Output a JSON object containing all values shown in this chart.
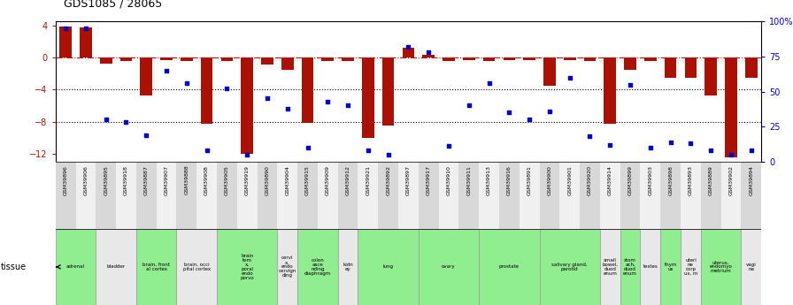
{
  "title": "GDS1085 / 28065",
  "gsm_ids": [
    "GSM39896",
    "GSM39906",
    "GSM39895",
    "GSM39918",
    "GSM39887",
    "GSM39907",
    "GSM39888",
    "GSM39908",
    "GSM39905",
    "GSM39919",
    "GSM39890",
    "GSM39904",
    "GSM39915",
    "GSM39909",
    "GSM39912",
    "GSM39921",
    "GSM39892",
    "GSM39897",
    "GSM39917",
    "GSM39910",
    "GSM39911",
    "GSM39913",
    "GSM39916",
    "GSM39891",
    "GSM39900",
    "GSM39901",
    "GSM39920",
    "GSM39914",
    "GSM39899",
    "GSM39903",
    "GSM39898",
    "GSM39893",
    "GSM39889",
    "GSM39902",
    "GSM39894"
  ],
  "log_ratio": [
    3.8,
    3.7,
    -0.8,
    -0.5,
    -4.8,
    -0.3,
    -0.5,
    -8.3,
    -0.4,
    -12.0,
    -0.9,
    -1.5,
    -8.2,
    -0.5,
    -0.4,
    -10.0,
    -8.5,
    1.2,
    0.3,
    -0.5,
    -0.3,
    -0.4,
    -0.3,
    -0.3,
    -3.5,
    -0.3,
    -0.5,
    -8.3,
    -1.5,
    -0.5,
    -2.5,
    -2.5,
    -4.8,
    -12.5,
    -2.5
  ],
  "percentile_rank": [
    95,
    95,
    30,
    28,
    19,
    65,
    56,
    8,
    52,
    5,
    45,
    38,
    10,
    43,
    40,
    8,
    5,
    82,
    78,
    11,
    40,
    56,
    35,
    30,
    36,
    60,
    18,
    12,
    55,
    10,
    14,
    13,
    8,
    5,
    8
  ],
  "ylim": [
    -13.0,
    4.5
  ],
  "yticks_left": [
    4,
    0,
    -4,
    -8,
    -12
  ],
  "yticks_right_pct": [
    100,
    75,
    50,
    25,
    0
  ],
  "yticks_right_labels": [
    "100%",
    "75",
    "50",
    "25",
    "0"
  ],
  "bar_color": "#aa1100",
  "dot_color": "#0000cc",
  "zero_line_color": "#cc0000",
  "grid_line_color": "#000000",
  "tissue_groups": [
    {
      "name": "adrenal",
      "start": 0,
      "end": 1,
      "color": "#90ee90"
    },
    {
      "name": "bladder",
      "start": 2,
      "end": 3,
      "color": "#e8e8e8"
    },
    {
      "name": "brain, front\nal cortex",
      "start": 4,
      "end": 5,
      "color": "#90ee90"
    },
    {
      "name": "brain, occi\npital cortex",
      "start": 6,
      "end": 7,
      "color": "#e8e8e8"
    },
    {
      "name": "brain\ntem\nx,\nporal\nendo\nporvo",
      "start": 8,
      "end": 10,
      "color": "#90ee90"
    },
    {
      "name": "cervi\nx,\nendo\ncervign\nding",
      "start": 11,
      "end": 11,
      "color": "#e8e8e8"
    },
    {
      "name": "colon\nasce\nnding\ndiaphragm",
      "start": 12,
      "end": 13,
      "color": "#90ee90"
    },
    {
      "name": "kidn\ney",
      "start": 14,
      "end": 14,
      "color": "#e8e8e8"
    },
    {
      "name": "lung",
      "start": 15,
      "end": 17,
      "color": "#90ee90"
    },
    {
      "name": "ovary",
      "start": 18,
      "end": 20,
      "color": "#90ee90"
    },
    {
      "name": "prostate",
      "start": 21,
      "end": 23,
      "color": "#90ee90"
    },
    {
      "name": "salivary gland,\nparotid",
      "start": 24,
      "end": 26,
      "color": "#90ee90"
    },
    {
      "name": "small\nbowel,\nduod\nenum",
      "start": 27,
      "end": 27,
      "color": "#e8e8e8"
    },
    {
      "name": "stom\nach,\nduod\nenum",
      "start": 28,
      "end": 28,
      "color": "#90ee90"
    },
    {
      "name": "testes",
      "start": 29,
      "end": 29,
      "color": "#e8e8e8"
    },
    {
      "name": "thym\nus",
      "start": 30,
      "end": 30,
      "color": "#90ee90"
    },
    {
      "name": "uteri\nne\ncorp\nus, m",
      "start": 31,
      "end": 31,
      "color": "#e8e8e8"
    },
    {
      "name": "uterus,\nendomyo\nmetrium",
      "start": 32,
      "end": 33,
      "color": "#90ee90"
    },
    {
      "name": "vagi\nna",
      "start": 34,
      "end": 34,
      "color": "#e8e8e8"
    }
  ],
  "gsm_band_color_even": "#d8d8d8",
  "gsm_band_color_odd": "#f0f0f0"
}
